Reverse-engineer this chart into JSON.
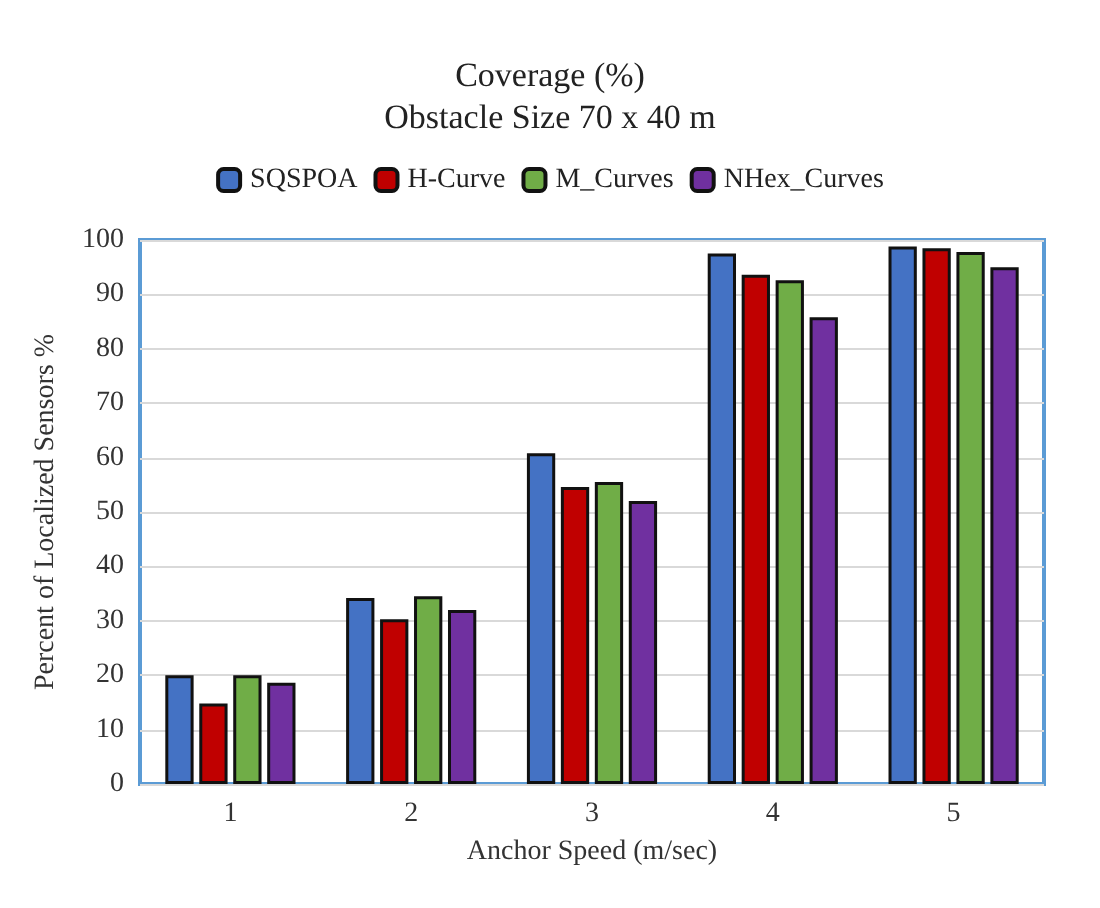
{
  "chart_data": {
    "type": "bar",
    "title": "Coverage (%)",
    "subtitle": "Obstacle Size 70 x 40 m",
    "xlabel": "Anchor Speed (m/sec)",
    "ylabel": "Percent of Localized Sensors %",
    "categories": [
      "1",
      "2",
      "3",
      "4",
      "5"
    ],
    "series": [
      {
        "name": "SQSPOA",
        "color": "#4472c4",
        "values": [
          20,
          34.2,
          60.8,
          97.5,
          98.8
        ]
      },
      {
        "name": "H-Curve",
        "color": "#c00000",
        "values": [
          14.8,
          30.3,
          54.6,
          93.6,
          98.5
        ]
      },
      {
        "name": "M_Curves",
        "color": "#70ad47",
        "values": [
          20,
          34.5,
          55.5,
          92.6,
          97.8
        ]
      },
      {
        "name": "NHex_Curves",
        "color": "#7030a0",
        "values": [
          18.6,
          32,
          52,
          85.8,
          95
        ]
      }
    ],
    "ylim": [
      0,
      100
    ],
    "yticks": [
      0,
      10,
      20,
      30,
      40,
      50,
      60,
      70,
      80,
      90,
      100
    ],
    "grid": "y",
    "legend": "top"
  }
}
